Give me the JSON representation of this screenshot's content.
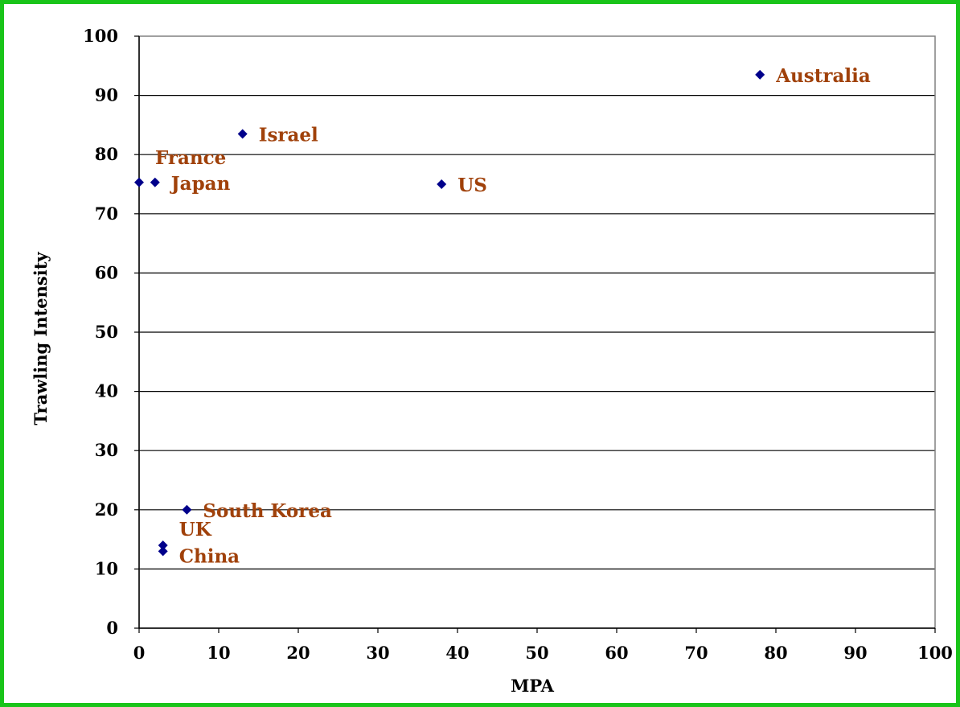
{
  "chart_data": {
    "type": "scatter",
    "xlabel": "MPA",
    "ylabel": "Trawling Intensity",
    "xlim": [
      0,
      100
    ],
    "ylim": [
      0,
      100
    ],
    "xticks": [
      "0",
      "10",
      "20",
      "30",
      "40",
      "50",
      "60",
      "70",
      "80",
      "90",
      "100"
    ],
    "yticks": [
      "0",
      "10",
      "20",
      "30",
      "40",
      "50",
      "60",
      "70",
      "80",
      "90",
      "100"
    ],
    "grid": "horizontal",
    "colors": {
      "marker": "#00008b",
      "label": "#a0410a",
      "frame": "#19c419"
    },
    "points": [
      {
        "label": "Australia",
        "x": 78,
        "y": 93.5
      },
      {
        "label": "Israel",
        "x": 13,
        "y": 83.5
      },
      {
        "label": "France",
        "x": 0,
        "y": 75.3
      },
      {
        "label": "Japan",
        "x": 2,
        "y": 75.3
      },
      {
        "label": "US",
        "x": 38,
        "y": 75
      },
      {
        "label": "South Korea",
        "x": 6,
        "y": 20
      },
      {
        "label": "UK",
        "x": 3,
        "y": 14
      },
      {
        "label": "China",
        "x": 3,
        "y": 13
      }
    ]
  }
}
